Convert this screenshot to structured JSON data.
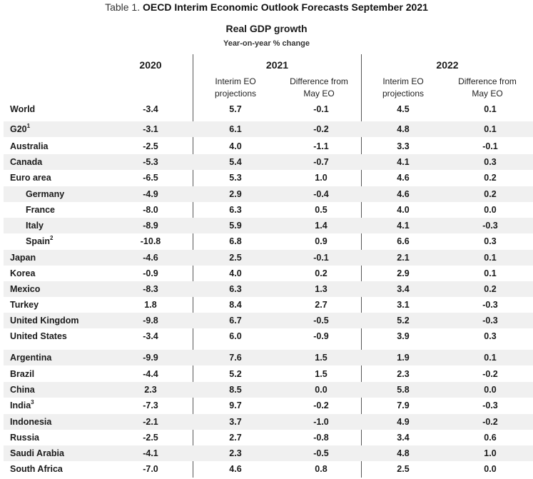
{
  "title": {
    "lead": "Table 1.",
    "main": "OECD Interim Economic Outlook Forecasts September 2021"
  },
  "subtitle": "Real GDP growth",
  "unit": "Year-on-year % change",
  "years": {
    "y2020": "2020",
    "y2021": "2021",
    "y2022": "2022"
  },
  "subheaders": {
    "interim_line1": "Interim EO",
    "interim_line2": "projections",
    "diff_line1": "Difference from",
    "diff_line2": "May EO"
  },
  "rows": [
    {
      "name": "World",
      "sup": "",
      "v2020": "-3.4",
      "p2021": "5.7",
      "d2021": "-0.1",
      "p2022": "4.5",
      "d2022": "0.1"
    },
    {
      "name": "G20",
      "sup": "1",
      "v2020": "-3.1",
      "p2021": "6.1",
      "d2021": "-0.2",
      "p2022": "4.8",
      "d2022": "0.1"
    },
    {
      "name": "Australia",
      "sup": "",
      "v2020": "-2.5",
      "p2021": "4.0",
      "d2021": "-1.1",
      "p2022": "3.3",
      "d2022": "-0.1"
    },
    {
      "name": "Canada",
      "sup": "",
      "v2020": "-5.3",
      "p2021": "5.4",
      "d2021": "-0.7",
      "p2022": "4.1",
      "d2022": "0.3"
    },
    {
      "name": "Euro area",
      "sup": "",
      "v2020": "-6.5",
      "p2021": "5.3",
      "d2021": "1.0",
      "p2022": "4.6",
      "d2022": "0.2"
    },
    {
      "name": "Germany",
      "sup": "",
      "v2020": "-4.9",
      "p2021": "2.9",
      "d2021": "-0.4",
      "p2022": "4.6",
      "d2022": "0.2"
    },
    {
      "name": "France",
      "sup": "",
      "v2020": "-8.0",
      "p2021": "6.3",
      "d2021": "0.5",
      "p2022": "4.0",
      "d2022": "0.0"
    },
    {
      "name": "Italy",
      "sup": "",
      "v2020": "-8.9",
      "p2021": "5.9",
      "d2021": "1.4",
      "p2022": "4.1",
      "d2022": "-0.3"
    },
    {
      "name": "Spain",
      "sup": "2",
      "v2020": "-10.8",
      "p2021": "6.8",
      "d2021": "0.9",
      "p2022": "6.6",
      "d2022": "0.3"
    },
    {
      "name": "Japan",
      "sup": "",
      "v2020": "-4.6",
      "p2021": "2.5",
      "d2021": "-0.1",
      "p2022": "2.1",
      "d2022": "0.1"
    },
    {
      "name": "Korea",
      "sup": "",
      "v2020": "-0.9",
      "p2021": "4.0",
      "d2021": "0.2",
      "p2022": "2.9",
      "d2022": "0.1"
    },
    {
      "name": "Mexico",
      "sup": "",
      "v2020": "-8.3",
      "p2021": "6.3",
      "d2021": "1.3",
      "p2022": "3.4",
      "d2022": "0.2"
    },
    {
      "name": "Turkey",
      "sup": "",
      "v2020": "1.8",
      "p2021": "8.4",
      "d2021": "2.7",
      "p2022": "3.1",
      "d2022": "-0.3"
    },
    {
      "name": "United Kingdom",
      "sup": "",
      "v2020": "-9.8",
      "p2021": "6.7",
      "d2021": "-0.5",
      "p2022": "5.2",
      "d2022": "-0.3"
    },
    {
      "name": "United States",
      "sup": "",
      "v2020": "-3.4",
      "p2021": "6.0",
      "d2021": "-0.9",
      "p2022": "3.9",
      "d2022": "0.3"
    },
    {
      "name": "Argentina",
      "sup": "",
      "v2020": "-9.9",
      "p2021": "7.6",
      "d2021": "1.5",
      "p2022": "1.9",
      "d2022": "0.1"
    },
    {
      "name": "Brazil",
      "sup": "",
      "v2020": "-4.4",
      "p2021": "5.2",
      "d2021": "1.5",
      "p2022": "2.3",
      "d2022": "-0.2"
    },
    {
      "name": "China",
      "sup": "",
      "v2020": "2.3",
      "p2021": "8.5",
      "d2021": "0.0",
      "p2022": "5.8",
      "d2022": "0.0"
    },
    {
      "name": "India",
      "sup": "3",
      "v2020": "-7.3",
      "p2021": "9.7",
      "d2021": "-0.2",
      "p2022": "7.9",
      "d2022": "-0.3"
    },
    {
      "name": "Indonesia",
      "sup": "",
      "v2020": "-2.1",
      "p2021": "3.7",
      "d2021": "-1.0",
      "p2022": "4.9",
      "d2022": "-0.2"
    },
    {
      "name": "Russia",
      "sup": "",
      "v2020": "-2.5",
      "p2021": "2.7",
      "d2021": "-0.8",
      "p2022": "3.4",
      "d2022": "0.6"
    },
    {
      "name": "Saudi Arabia",
      "sup": "",
      "v2020": "-4.1",
      "p2021": "2.3",
      "d2021": "-0.5",
      "p2022": "4.8",
      "d2022": "1.0"
    },
    {
      "name": "South Africa",
      "sup": "",
      "v2020": "-7.0",
      "p2021": "4.6",
      "d2021": "0.8",
      "p2022": "2.5",
      "d2022": "0.0"
    }
  ]
}
